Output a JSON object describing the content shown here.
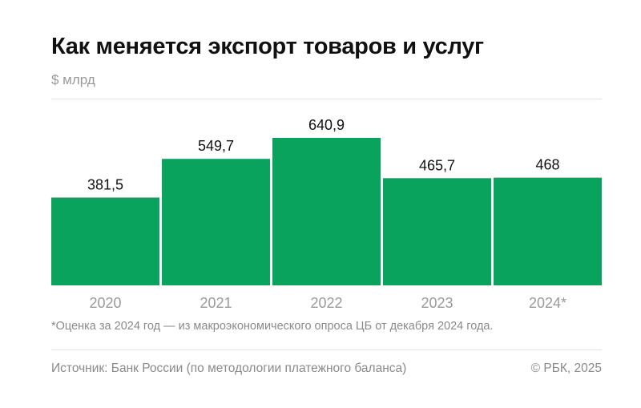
{
  "header": {
    "title": "Как меняется экспорт товаров и услуг",
    "unit": "$ млрд"
  },
  "chart_data": {
    "type": "bar",
    "categories": [
      "2020",
      "2021",
      "2022",
      "2023",
      "2024*"
    ],
    "values": [
      381.5,
      549.7,
      640.9,
      465.7,
      468
    ],
    "value_labels": [
      "381,5",
      "549,7",
      "640,9",
      "465,7",
      "468"
    ],
    "title": "Как меняется экспорт товаров и услуг",
    "ylabel": "$ млрд",
    "ylim": [
      0,
      640.9
    ],
    "grid": false,
    "legend": "none",
    "colors": {
      "bar": "#0aa35e",
      "value_label": "#111111",
      "tick_label": "#9a9a9a"
    }
  },
  "footer": {
    "note": "*Оценка за 2024 год — из макроэкономического опроса ЦБ от декабря 2024 года.",
    "source": "Источник: Банк России (по методологии платежного баланса)",
    "copyright": "© РБК, 2025"
  }
}
